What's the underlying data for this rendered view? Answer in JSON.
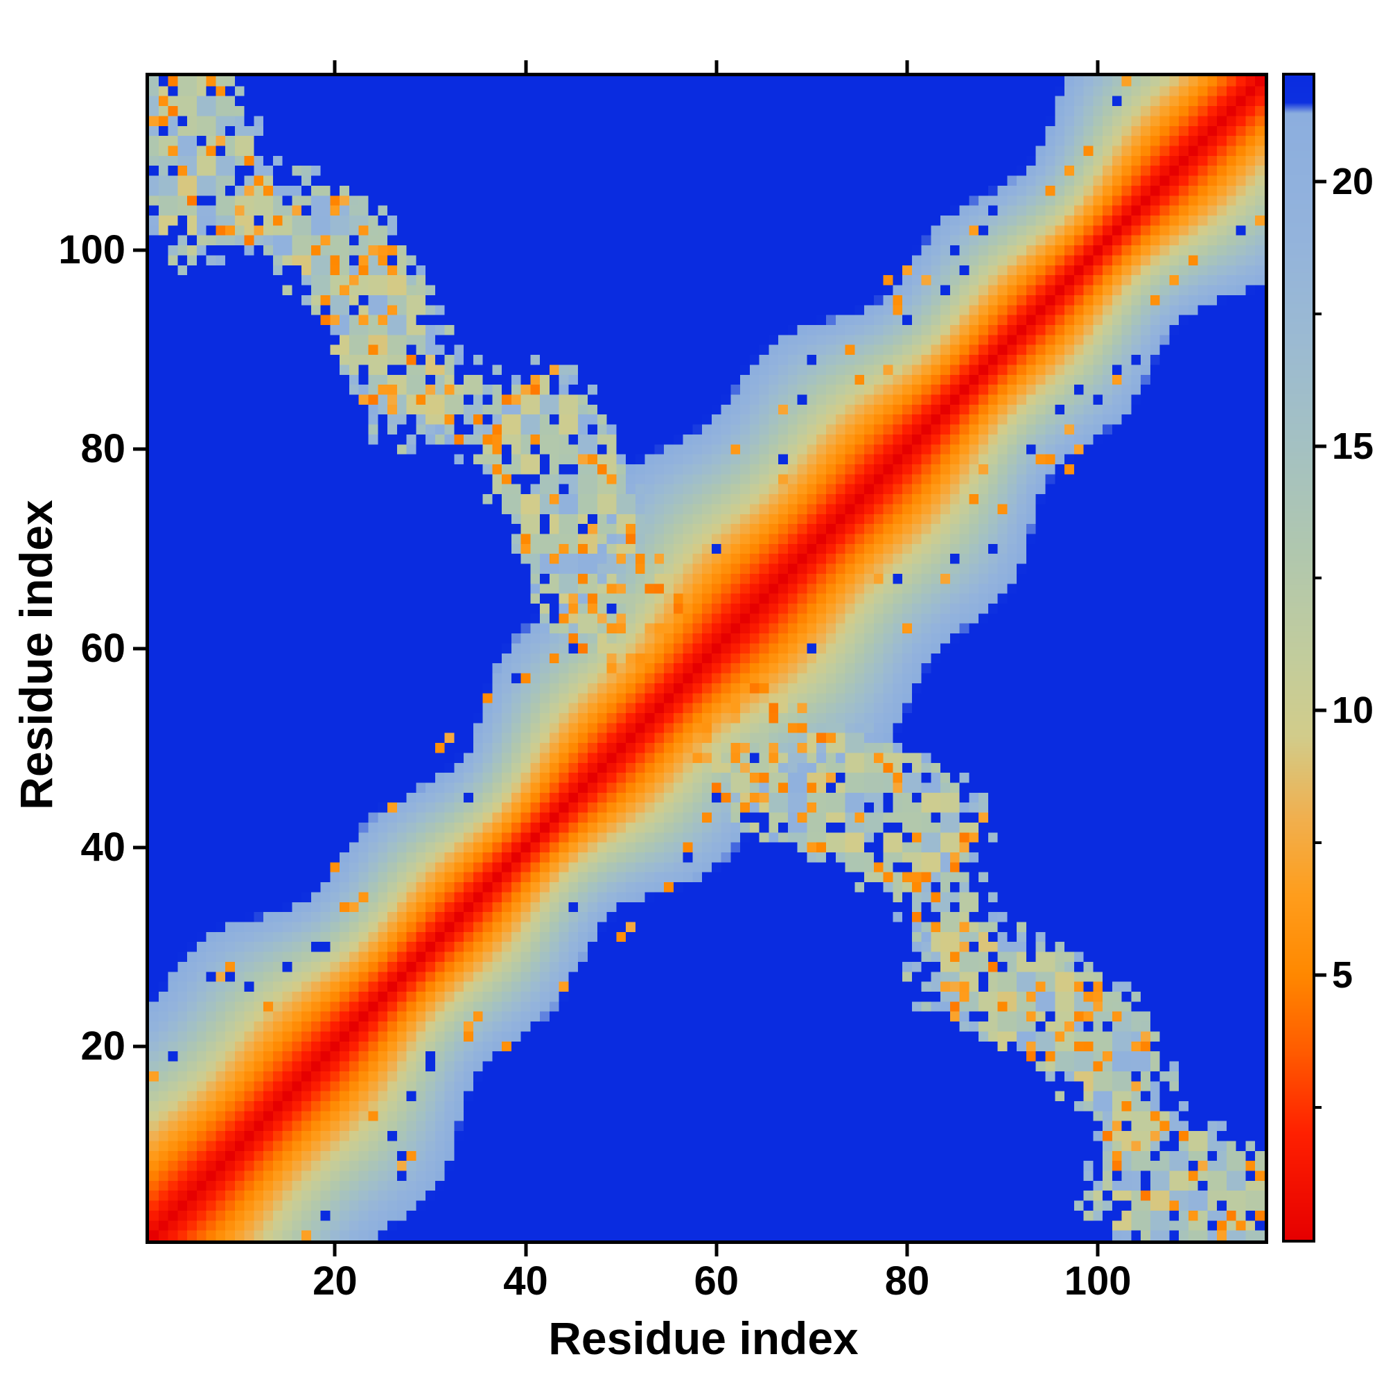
{
  "figure": {
    "background_color": "#ffffff",
    "frame_color": "#000000"
  },
  "chart_data": {
    "type": "heatmap",
    "title": "",
    "xlabel": "Residue index",
    "ylabel": "Residue index",
    "n_residues": 117,
    "x_range": [
      1,
      117
    ],
    "y_range": [
      1,
      117
    ],
    "x_ticks": [
      20,
      40,
      60,
      80,
      100
    ],
    "y_ticks": [
      20,
      40,
      60,
      80,
      100
    ],
    "colorbar": {
      "min": 0,
      "max": 22,
      "major_ticks": [
        5,
        10,
        15,
        20
      ],
      "minor_ticks": [
        2.5,
        7.5,
        12.5,
        17.5
      ]
    },
    "colormap_stops": [
      [
        0,
        "#e60000"
      ],
      [
        2,
        "#ff2000"
      ],
      [
        3.5,
        "#ff5a00"
      ],
      [
        5,
        "#ff8800"
      ],
      [
        6.5,
        "#ff9d1c"
      ],
      [
        8,
        "#f0b050"
      ],
      [
        9.5,
        "#d2cc8a"
      ],
      [
        11,
        "#c2cc9c"
      ],
      [
        13,
        "#b0c7ae"
      ],
      [
        15,
        "#a4c1c2"
      ],
      [
        17,
        "#9bbad2"
      ],
      [
        19,
        "#93b3dc"
      ],
      [
        21.3,
        "#8caede"
      ],
      [
        21.5,
        "#0d30e0"
      ],
      [
        22,
        "#0a2ce0"
      ]
    ],
    "background_value_color": "#0a2ce0",
    "pattern": {
      "description": "Symmetric residue-residue distance map: red low-distance core along the main diagonal (value ~ |i-j|), a broad ragged speckled contact band along the anti-diagonal i+j ~ 118 with values mostly 9-19 plus orange (~5-7) and deep-blue (~22) specks; everywhere else saturates to deep blue (>= 22).",
      "main_band_visible_halfwidth": 22,
      "anti_band_center_sum": 118,
      "anti_band_halfwidth_range": [
        1,
        13
      ],
      "speck_fraction_orange": 0.15,
      "speck_fraction_blue": 0.09
    }
  }
}
